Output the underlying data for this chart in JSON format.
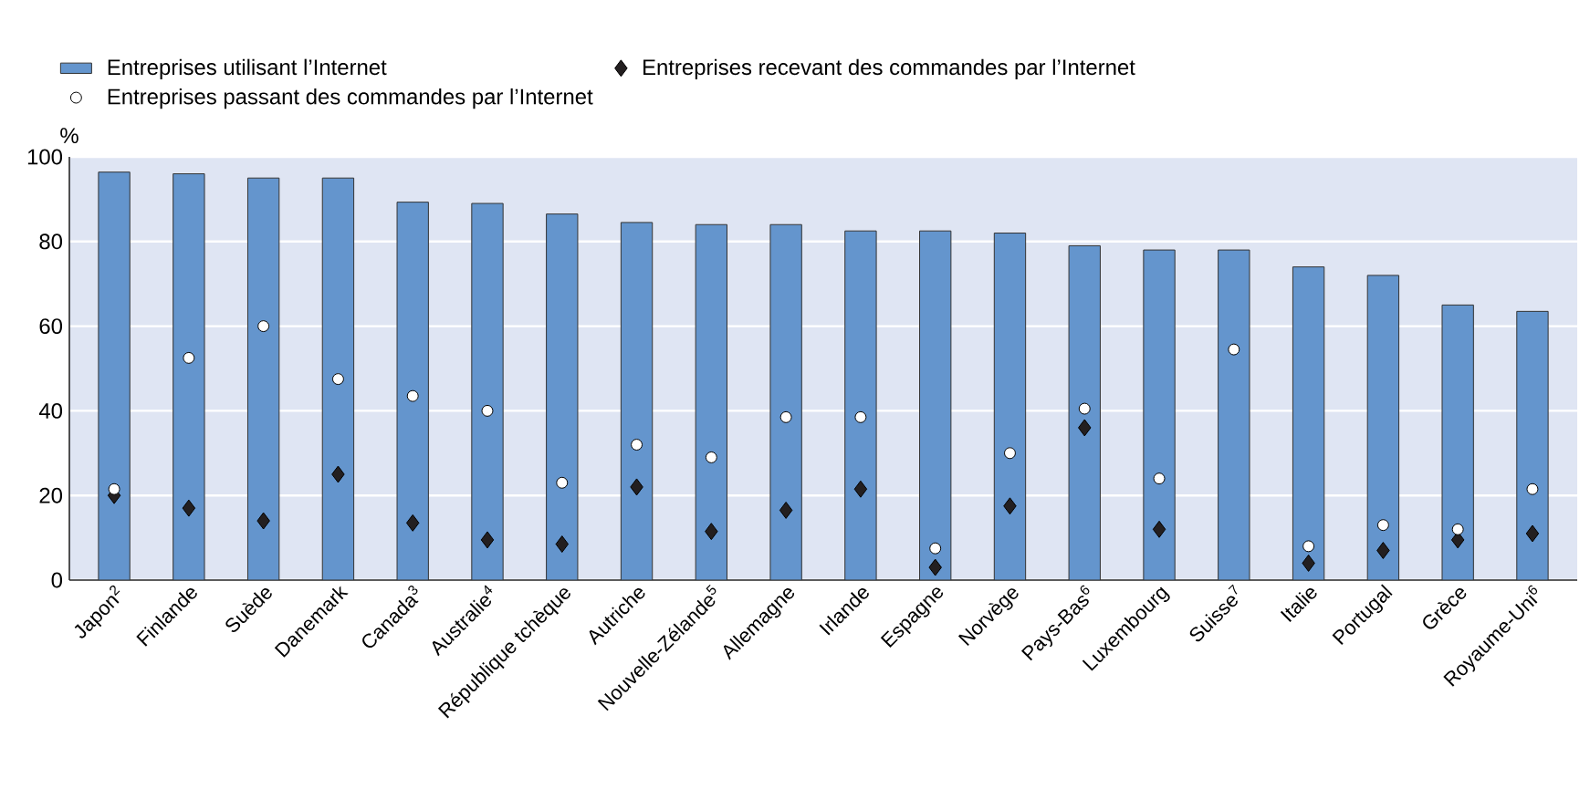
{
  "chart_data": {
    "type": "bar",
    "ylabel": "%",
    "categories": [
      "Japon$^{2}$",
      "Finlande",
      "Suède",
      "Danemark",
      "Canada$^{3}$",
      "Australie$^{4}$",
      "République tchèque",
      "Autriche",
      "Nouvelle-Zélande$^{5}$",
      "Allemagne",
      "Irlande",
      "Espagne",
      "Norvège",
      "Pays-Bas$^{6}$",
      "Luxembourg",
      "Suisse$^{7}$",
      "Italie",
      "Portugal",
      "Grèce",
      "Royaume-Uni$^{6}$"
    ],
    "series": [
      {
        "name": "Entreprises utilisant l’Internet",
        "color": "#6495cd",
        "values": [
          96.4,
          96,
          95,
          95,
          89.3,
          89,
          86.5,
          84.5,
          84,
          84,
          82.5,
          82.5,
          82,
          79,
          78,
          78,
          74,
          72,
          65,
          63.5
        ]
      },
      {
        "name": "Entreprises recevant des commandes par l’Internet",
        "type": "scatter",
        "marker": "diamond",
        "color": "#231f20",
        "values": [
          20,
          17,
          14,
          25,
          13.5,
          9.5,
          8.5,
          22,
          11.5,
          16.5,
          21.5,
          3,
          17.5,
          36,
          12,
          null,
          4,
          7,
          9.5,
          11
        ]
      },
      {
        "name": "Entreprises passant des commandes par l’Internet",
        "type": "scatter",
        "marker": "circle",
        "color": "#ffffff",
        "values": [
          21.5,
          52.5,
          60,
          47.5,
          43.5,
          40,
          23,
          32,
          29,
          38.5,
          38.5,
          7.5,
          30,
          40.5,
          24,
          54.5,
          8,
          13,
          12,
          21.5
        ]
      }
    ],
    "ylim": [
      0,
      100
    ],
    "yticks": [
      0,
      20,
      40,
      60,
      80,
      100
    ],
    "grid": "y",
    "legend": "top"
  }
}
